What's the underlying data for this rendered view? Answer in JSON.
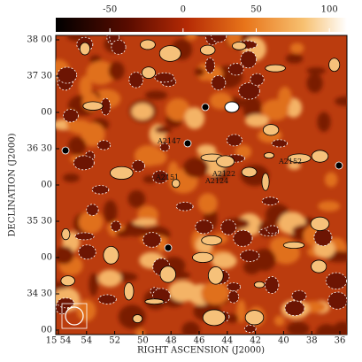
{
  "chart_data": {
    "type": "image",
    "colorbar": {
      "lim": [
        -87,
        112
      ],
      "ticks": [
        -50,
        0,
        50,
        100
      ]
    },
    "xlabel": "RIGHT ASCENSION (J2000)",
    "ylabel": "DECLINATION (J2000)",
    "xtick_labels": [
      "15 54",
      "54",
      "52",
      "50",
      "48",
      "46",
      "44",
      "42",
      "40",
      "38",
      "36"
    ],
    "ytick_labels": [
      "38 00",
      "37 30",
      "00",
      "36 30",
      "00",
      "35 30",
      "00",
      "34 30",
      "00"
    ],
    "annotations": [
      "A2147",
      "A2151",
      "A2122",
      "A2124",
      "A2152"
    ]
  }
}
